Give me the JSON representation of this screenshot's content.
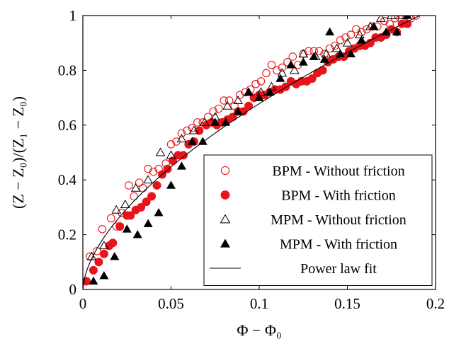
{
  "chart_data": {
    "type": "scatter",
    "xlabel": "Φ − Φ₀",
    "ylabel": "(Z − Z₀)/(Z₁ − Z₀)",
    "xlim": [
      0,
      0.2
    ],
    "ylim": [
      0,
      1
    ],
    "x_ticks": [
      "0",
      "0.05",
      "0.1",
      "0.15",
      "0.2"
    ],
    "y_ticks": [
      "0",
      "0.2",
      "0.4",
      "0.6",
      "0.8",
      "1"
    ],
    "grid": false,
    "legend_position": "bottom-right",
    "series": [
      {
        "name": "BPM - Without friction",
        "marker": "open-circle",
        "color": "#e8141b",
        "points": [
          [
            0.004,
            0.12
          ],
          [
            0.008,
            0.14
          ],
          [
            0.011,
            0.22
          ],
          [
            0.016,
            0.26
          ],
          [
            0.019,
            0.23
          ],
          [
            0.022,
            0.28
          ],
          [
            0.026,
            0.38
          ],
          [
            0.029,
            0.34
          ],
          [
            0.032,
            0.39
          ],
          [
            0.034,
            0.37
          ],
          [
            0.037,
            0.44
          ],
          [
            0.04,
            0.43
          ],
          [
            0.043,
            0.44
          ],
          [
            0.047,
            0.46
          ],
          [
            0.05,
            0.53
          ],
          [
            0.053,
            0.54
          ],
          [
            0.056,
            0.57
          ],
          [
            0.059,
            0.58
          ],
          [
            0.062,
            0.59
          ],
          [
            0.065,
            0.61
          ],
          [
            0.068,
            0.61
          ],
          [
            0.071,
            0.63
          ],
          [
            0.074,
            0.65
          ],
          [
            0.077,
            0.66
          ],
          [
            0.08,
            0.69
          ],
          [
            0.083,
            0.69
          ],
          [
            0.086,
            0.67
          ],
          [
            0.089,
            0.71
          ],
          [
            0.092,
            0.72
          ],
          [
            0.095,
            0.73
          ],
          [
            0.098,
            0.75
          ],
          [
            0.101,
            0.76
          ],
          [
            0.104,
            0.79
          ],
          [
            0.107,
            0.82
          ],
          [
            0.11,
            0.8
          ],
          [
            0.113,
            0.81
          ],
          [
            0.116,
            0.83
          ],
          [
            0.119,
            0.85
          ],
          [
            0.122,
            0.82
          ],
          [
            0.125,
            0.86
          ],
          [
            0.128,
            0.87
          ],
          [
            0.131,
            0.87
          ],
          [
            0.134,
            0.87
          ],
          [
            0.137,
            0.86
          ],
          [
            0.14,
            0.88
          ],
          [
            0.143,
            0.89
          ],
          [
            0.146,
            0.91
          ],
          [
            0.149,
            0.92
          ],
          [
            0.152,
            0.93
          ],
          [
            0.155,
            0.95
          ],
          [
            0.158,
            0.94
          ],
          [
            0.161,
            0.95
          ],
          [
            0.164,
            0.96
          ],
          [
            0.167,
            0.96
          ],
          [
            0.171,
            0.98
          ],
          [
            0.174,
            0.97
          ],
          [
            0.177,
            0.99
          ],
          [
            0.18,
            0.99
          ],
          [
            0.183,
            1.0
          ],
          [
            0.186,
            0.99
          ],
          [
            0.189,
            1.0
          ]
        ]
      },
      {
        "name": "BPM - With friction",
        "marker": "filled-circle",
        "color": "#e8141b",
        "points": [
          [
            0.002,
            0.03
          ],
          [
            0.006,
            0.07
          ],
          [
            0.009,
            0.1
          ],
          [
            0.012,
            0.13
          ],
          [
            0.015,
            0.16
          ],
          [
            0.017,
            0.17
          ],
          [
            0.021,
            0.23
          ],
          [
            0.025,
            0.27
          ],
          [
            0.027,
            0.27
          ],
          [
            0.03,
            0.29
          ],
          [
            0.033,
            0.3
          ],
          [
            0.036,
            0.32
          ],
          [
            0.039,
            0.34
          ],
          [
            0.042,
            0.38
          ],
          [
            0.045,
            0.42
          ],
          [
            0.048,
            0.44
          ],
          [
            0.051,
            0.47
          ],
          [
            0.054,
            0.49
          ],
          [
            0.057,
            0.49
          ],
          [
            0.06,
            0.53
          ],
          [
            0.063,
            0.54
          ],
          [
            0.066,
            0.58
          ],
          [
            0.07,
            0.6
          ],
          [
            0.073,
            0.61
          ],
          [
            0.076,
            0.6
          ],
          [
            0.079,
            0.61
          ],
          [
            0.082,
            0.62
          ],
          [
            0.085,
            0.63
          ],
          [
            0.088,
            0.65
          ],
          [
            0.091,
            0.65
          ],
          [
            0.094,
            0.67
          ],
          [
            0.097,
            0.7
          ],
          [
            0.1,
            0.71
          ],
          [
            0.103,
            0.71
          ],
          [
            0.106,
            0.72
          ],
          [
            0.109,
            0.73
          ],
          [
            0.112,
            0.73
          ],
          [
            0.115,
            0.74
          ],
          [
            0.118,
            0.76
          ],
          [
            0.121,
            0.75
          ],
          [
            0.124,
            0.76
          ],
          [
            0.127,
            0.76
          ],
          [
            0.13,
            0.77
          ],
          [
            0.133,
            0.79
          ],
          [
            0.136,
            0.8
          ],
          [
            0.139,
            0.83
          ],
          [
            0.142,
            0.84
          ],
          [
            0.145,
            0.85
          ],
          [
            0.148,
            0.85
          ],
          [
            0.151,
            0.87
          ],
          [
            0.154,
            0.88
          ],
          [
            0.157,
            0.89
          ],
          [
            0.16,
            0.89
          ],
          [
            0.163,
            0.9
          ],
          [
            0.166,
            0.92
          ],
          [
            0.169,
            0.92
          ],
          [
            0.172,
            0.93
          ],
          [
            0.175,
            0.95
          ],
          [
            0.178,
            0.94
          ],
          [
            0.181,
            0.97
          ],
          [
            0.184,
            0.97
          ]
        ]
      },
      {
        "name": "MPM - Without friction",
        "marker": "open-triangle",
        "color": "#000000",
        "points": [
          [
            0.005,
            0.12
          ],
          [
            0.012,
            0.16
          ],
          [
            0.019,
            0.29
          ],
          [
            0.024,
            0.31
          ],
          [
            0.03,
            0.37
          ],
          [
            0.037,
            0.4
          ],
          [
            0.044,
            0.5
          ],
          [
            0.05,
            0.49
          ],
          [
            0.056,
            0.55
          ],
          [
            0.063,
            0.58
          ],
          [
            0.069,
            0.61
          ],
          [
            0.075,
            0.63
          ],
          [
            0.082,
            0.67
          ],
          [
            0.088,
            0.69
          ],
          [
            0.094,
            0.72
          ],
          [
            0.101,
            0.72
          ],
          [
            0.107,
            0.74
          ],
          [
            0.113,
            0.79
          ],
          [
            0.12,
            0.8
          ],
          [
            0.125,
            0.86
          ],
          [
            0.132,
            0.85
          ],
          [
            0.138,
            0.86
          ],
          [
            0.144,
            0.88
          ],
          [
            0.15,
            0.9
          ],
          [
            0.157,
            0.93
          ],
          [
            0.163,
            0.96
          ],
          [
            0.169,
            0.99
          ],
          [
            0.175,
            1.0
          ],
          [
            0.181,
            1.0
          ]
        ]
      },
      {
        "name": "MPM - With friction",
        "marker": "filled-triangle",
        "color": "#000000",
        "points": [
          [
            0.006,
            0.03
          ],
          [
            0.012,
            0.05
          ],
          [
            0.018,
            0.12
          ],
          [
            0.025,
            0.22
          ],
          [
            0.031,
            0.2
          ],
          [
            0.037,
            0.24
          ],
          [
            0.043,
            0.28
          ],
          [
            0.05,
            0.38
          ],
          [
            0.056,
            0.45
          ],
          [
            0.062,
            0.54
          ],
          [
            0.068,
            0.54
          ],
          [
            0.075,
            0.61
          ],
          [
            0.081,
            0.61
          ],
          [
            0.088,
            0.65
          ],
          [
            0.094,
            0.72
          ],
          [
            0.1,
            0.7
          ],
          [
            0.106,
            0.72
          ],
          [
            0.112,
            0.77
          ],
          [
            0.118,
            0.82
          ],
          [
            0.125,
            0.83
          ],
          [
            0.131,
            0.85
          ],
          [
            0.137,
            0.84
          ],
          [
            0.14,
            0.94
          ],
          [
            0.146,
            0.86
          ],
          [
            0.152,
            0.86
          ],
          [
            0.158,
            0.91
          ],
          [
            0.165,
            0.96
          ],
          [
            0.172,
            0.94
          ],
          [
            0.178,
            0.94
          ],
          [
            0.184,
            1.0
          ]
        ]
      },
      {
        "name": "Power law fit",
        "marker": "line",
        "color": "#000000",
        "fit": {
          "a": 2.7,
          "b": 0.6
        }
      }
    ]
  }
}
